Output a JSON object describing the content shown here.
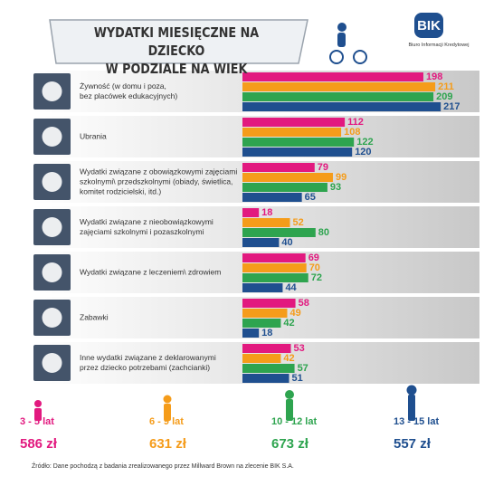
{
  "title": "WYDATKI MIESIĘCZNE NA DZIECKO\nW PODZIALE NA WIEK",
  "logo": {
    "name": "BIK",
    "subtitle": "Biuro Informacji Kredytowej"
  },
  "chart_data": {
    "type": "bar",
    "orientation": "horizontal",
    "categories": [
      "Żywność (w domu i poza,\nbez placówek edukacyjnych)",
      "Ubrania",
      "Wydatki związane z obowiązkowymi zajęciami\nszkolnymi\\ przedszkolnymi (obiady, świetlica,\nkomitet rodzicielski, itd.)",
      "Wydatki związane z nieobowiązkowymi\nzajęciami szkolnymi i pozaszkolnymi",
      "Wydatki związane z leczeniem\\ zdrowiem",
      "Zabawki",
      "Inne wydatki związane z deklarowanymi\nprzez dziecko potrzebami (zachcianki)"
    ],
    "series": [
      {
        "name": "3 - 5 lat",
        "total": "586 zł",
        "color": "#e2197f",
        "values": [
          198,
          112,
          79,
          18,
          69,
          58,
          53
        ]
      },
      {
        "name": "6 - 9 lat",
        "total": "631 zł",
        "color": "#f59c1a",
        "values": [
          211,
          108,
          99,
          52,
          70,
          49,
          42
        ]
      },
      {
        "name": "10 - 12 lat",
        "total": "673 zł",
        "color": "#2ea44f",
        "values": [
          209,
          122,
          93,
          80,
          72,
          42,
          57
        ]
      },
      {
        "name": "13 - 15 lat",
        "total": "557 zł",
        "color": "#1f4f8f",
        "values": [
          217,
          120,
          65,
          40,
          44,
          18,
          51
        ]
      }
    ]
  },
  "source": "Źródło: Dane pochodzą z badania zrealizowanego przez Millward Brown na zlecenie BIK S.A."
}
